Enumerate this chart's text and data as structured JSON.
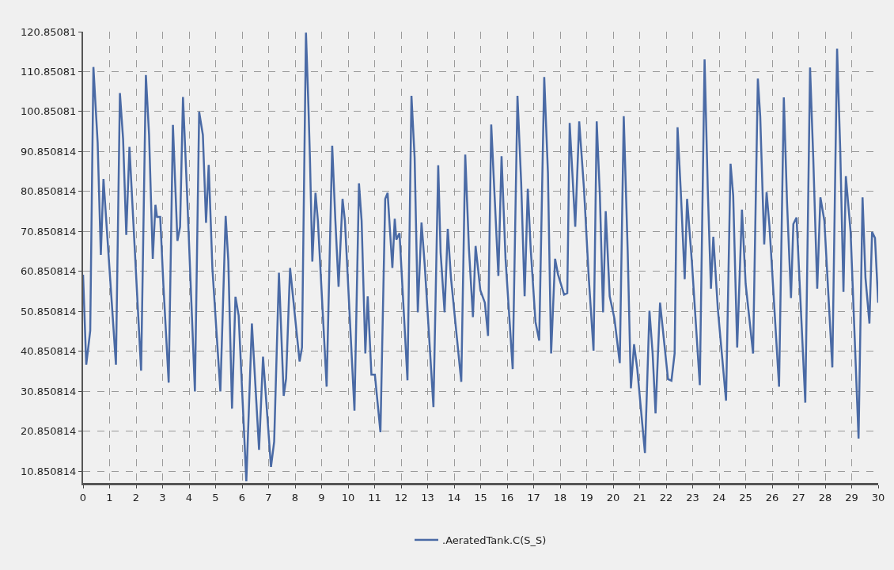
{
  "chart_data": {
    "type": "line",
    "x": [
      0,
      0.12,
      0.27,
      0.39,
      0.55,
      0.67,
      0.77,
      0.87,
      1.24,
      1.39,
      1.51,
      1.63,
      1.75,
      1.89,
      2.19,
      2.37,
      2.49,
      2.63,
      2.73,
      2.79,
      2.91,
      3.03,
      3.23,
      3.39,
      3.56,
      3.66,
      3.77,
      3.92,
      4.22,
      4.38,
      4.52,
      4.64,
      4.74,
      4.88,
      5.18,
      5.38,
      5.48,
      5.62,
      5.75,
      5.87,
      6.16,
      6.37,
      6.64,
      6.79,
      7.09,
      7.21,
      7.39,
      7.57,
      7.66,
      7.81,
      8.17,
      8.26,
      8.41,
      8.5,
      8.56,
      8.65,
      8.77,
      8.86,
      9.19,
      9.4,
      9.52,
      9.64,
      9.79,
      9.88,
      10.24,
      10.41,
      10.51,
      10.65,
      10.74,
      10.88,
      11.01,
      11.22,
      11.4,
      11.49,
      11.67,
      11.76,
      11.82,
      11.94,
      12.24,
      12.39,
      12.51,
      12.63,
      12.77,
      12.89,
      13.22,
      13.4,
      13.49,
      13.64,
      13.76,
      13.88,
      14.27,
      14.42,
      14.56,
      14.71,
      14.81,
      14.99,
      15.16,
      15.28,
      15.4,
      15.67,
      15.79,
      15.94,
      16.21,
      16.39,
      16.53,
      16.66,
      16.78,
      16.89,
      17.07,
      17.21,
      17.4,
      17.54,
      17.66,
      17.81,
      17.92,
      18.15,
      18.27,
      18.36,
      18.57,
      18.72,
      18.9,
      19.08,
      19.26,
      19.38,
      19.5,
      19.62,
      19.72,
      19.87,
      20.05,
      20.25,
      20.4,
      20.55,
      20.67,
      20.79,
      20.91,
      21.2,
      21.37,
      21.49,
      21.6,
      21.77,
      22.07,
      22.2,
      22.32,
      22.43,
      22.56,
      22.7,
      22.79,
      22.97,
      23.27,
      23.45,
      23.57,
      23.69,
      23.78,
      23.95,
      24.26,
      24.43,
      24.53,
      24.68,
      24.86,
      25,
      25.28,
      25.46,
      25.55,
      25.7,
      25.79,
      25.9,
      26.26,
      26.44,
      26.56,
      26.71,
      26.8,
      26.92,
      27.25,
      27.43,
      27.55,
      27.7,
      27.82,
      27.97,
      28.27,
      28.45,
      28.57,
      28.69,
      28.78,
      28.96,
      29.26,
      29.41,
      29.52,
      29.67,
      29.77,
      29.88,
      30
    ],
    "series": [
      {
        "name": ".AeratedTank.C(S_S)",
        "color": "#4a6aa5",
        "values": [
          60,
          37.5,
          46,
          112,
          93,
          65,
          84,
          74,
          37.5,
          105.5,
          94,
          70,
          92,
          74,
          36,
          110,
          95,
          64,
          77.5,
          74.5,
          74.5,
          57.5,
          33,
          97.5,
          68.5,
          72,
          104.5,
          81,
          30.8,
          100.8,
          95,
          73,
          87.5,
          61.5,
          30.8,
          74.7,
          63.5,
          26.5,
          54.5,
          49.8,
          8.3,
          47.8,
          16.2,
          39.5,
          11.9,
          18.2,
          60.5,
          29.7,
          34,
          61.7,
          38.3,
          41.8,
          120.6,
          102.8,
          89.3,
          63.3,
          80.5,
          73.5,
          32,
          92.3,
          73.5,
          57,
          79,
          73.5,
          26,
          82.9,
          73.5,
          40.3,
          54.6,
          35,
          35,
          20.6,
          79,
          80.5,
          61.7,
          74,
          68.8,
          70.4,
          33.6,
          104.8,
          89.3,
          50.6,
          73.1,
          62.5,
          26.9,
          87.4,
          65.6,
          50.6,
          71.5,
          59.3,
          33.2,
          90.1,
          66.4,
          49.4,
          67.2,
          56.1,
          53,
          44.7,
          97.6,
          59.7,
          89.7,
          64,
          36.4,
          104.8,
          83,
          54.6,
          81.5,
          66.4,
          48.2,
          43.5,
          109.5,
          85.4,
          40.3,
          64,
          60.1,
          55,
          55.4,
          98,
          72,
          98.4,
          81.5,
          59.3,
          41,
          98.4,
          79.8,
          50.6,
          75.9,
          54.6,
          49,
          37.9,
          99.7,
          65.6,
          31.6,
          42.6,
          36.4,
          15.4,
          51,
          40.3,
          25.3,
          53,
          33.9,
          33.5,
          40.3,
          96.9,
          79.8,
          58.9,
          79,
          63.3,
          32.4,
          113.9,
          81.5,
          56.5,
          69.5,
          51.4,
          28.5,
          87.8,
          79.8,
          41.8,
          76.3,
          57.7,
          40.3,
          109.1,
          99.6,
          67.6,
          80.7,
          72,
          32,
          104.4,
          78.3,
          54.2,
          72.7,
          74.3,
          28,
          111.9,
          89.3,
          56.5,
          79.4,
          73.5,
          36.8,
          116.6,
          90.9,
          55.7,
          84.7,
          70.7,
          19,
          79.4,
          59.3,
          47.8,
          70.7,
          69.2,
          53
        ]
      }
    ],
    "xlim": [
      0,
      30
    ],
    "xticks": [
      0,
      1,
      2,
      3,
      4,
      5,
      6,
      7,
      8,
      9,
      10,
      11,
      12,
      13,
      14,
      15,
      16,
      17,
      18,
      19,
      20,
      21,
      22,
      23,
      24,
      25,
      26,
      27,
      28,
      29,
      30
    ],
    "ylim": [
      7.9,
      120.85081
    ],
    "yticks": [
      10.850814,
      20.850814,
      30.850814,
      40.850814,
      50.850814,
      60.850814,
      70.850814,
      80.850814,
      90.850814,
      100.85081,
      110.85081,
      120.85081
    ],
    "grid": true,
    "legend": "bottom",
    "marker": "none",
    "line_style": "solid"
  }
}
